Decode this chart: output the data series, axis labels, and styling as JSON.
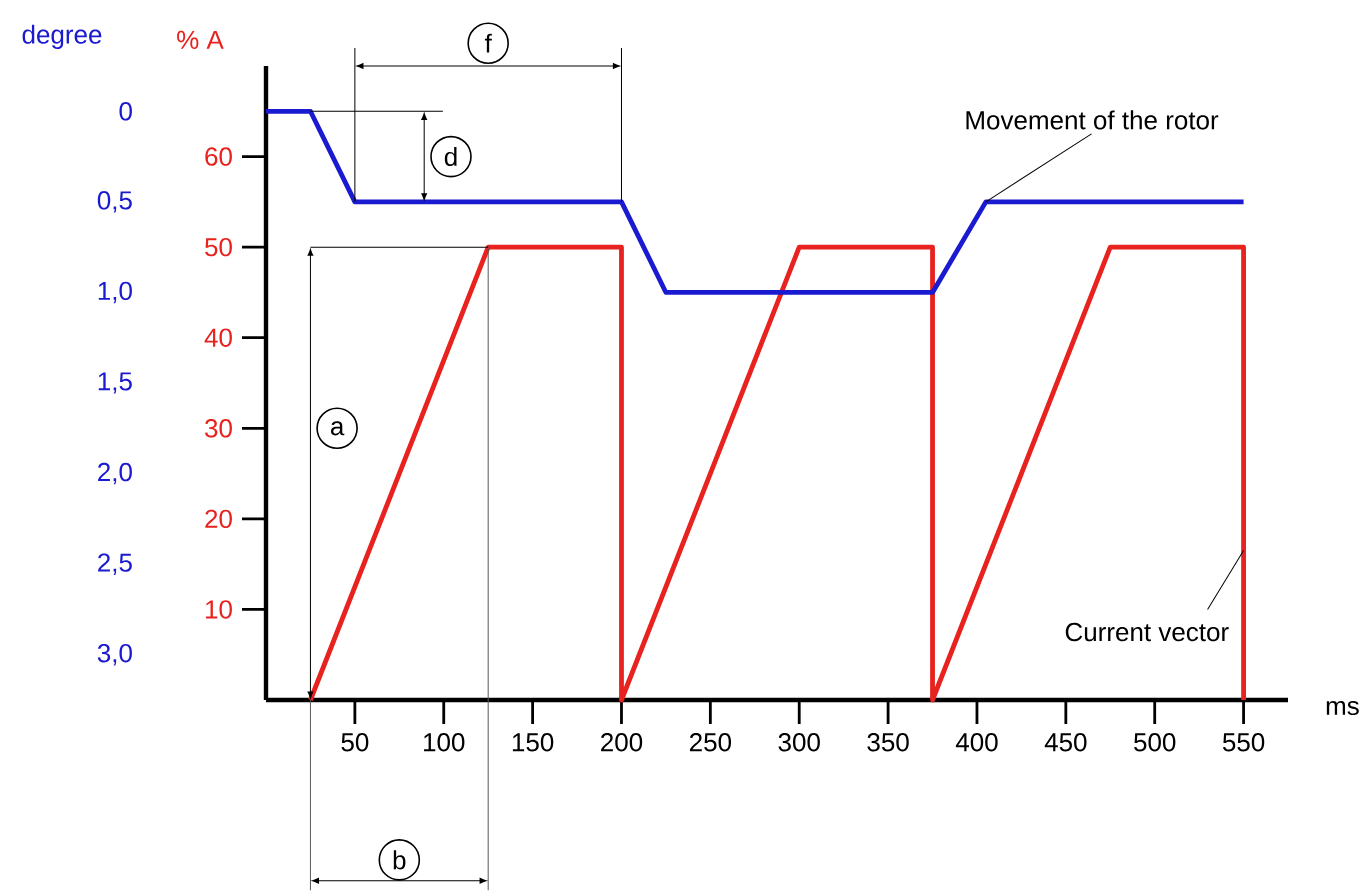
{
  "chart_data": {
    "type": "line",
    "xlabel": "ms",
    "ylabel": "% A",
    "y2label": "degree",
    "xlim": [
      0,
      575
    ],
    "xticks": [
      50,
      100,
      150,
      200,
      250,
      300,
      350,
      400,
      450,
      500,
      550
    ],
    "ylim": [
      0,
      70
    ],
    "yticks": [
      10,
      20,
      30,
      40,
      50,
      60
    ],
    "y2lim": [
      3.25,
      -0.25
    ],
    "y2ticks": [
      {
        "value": 0,
        "label": "0"
      },
      {
        "value": 0.5,
        "label": "0,5"
      },
      {
        "value": 1.0,
        "label": "1,0"
      },
      {
        "value": 1.5,
        "label": "1,5"
      },
      {
        "value": 2.0,
        "label": "2,0"
      },
      {
        "value": 2.5,
        "label": "2,5"
      },
      {
        "value": 3.0,
        "label": "3,0"
      }
    ],
    "series": [
      {
        "name": "Current vector",
        "color": "#e8221e",
        "x": [
          25,
          125,
          200,
          200,
          300,
          375,
          375,
          475,
          550,
          550
        ],
        "values": [
          0,
          50,
          50,
          0,
          50,
          50,
          0,
          50,
          50,
          0
        ]
      },
      {
        "name": "Movement of the rotor",
        "color": "#1a1ad0",
        "axis": "y2",
        "x": [
          0,
          25,
          50,
          200,
          225,
          375,
          405,
          550
        ],
        "values": [
          0,
          0,
          0.5,
          0.5,
          1.0,
          1.0,
          0.5,
          0.5
        ]
      }
    ],
    "ref_lines": [
      {
        "axis": "x",
        "value": 125,
        "color": "#595959"
      }
    ],
    "annotations": [
      "a",
      "b",
      "d",
      "f"
    ]
  }
}
